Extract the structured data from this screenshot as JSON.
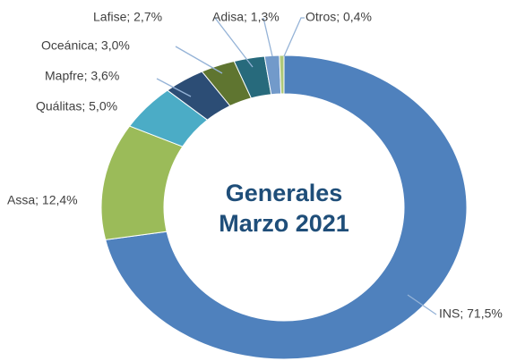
{
  "chart_data": {
    "type": "donut",
    "title": [
      "Generales",
      "Marzo 2021"
    ],
    "values": [
      71.5,
      12.4,
      5.0,
      3.6,
      3.0,
      2.7,
      1.3,
      0.4
    ],
    "value_labels": [
      "INS; 71,5%",
      "Assa; 12,4%",
      "Quálitas; 5,0%",
      "Mapfre; 3,6%",
      "Oceánica; 3,0%",
      "Lafise; 2,7%",
      "Adisa; 1,3%",
      "Otros; 0,4%"
    ],
    "colors": [
      "#4f81bd",
      "#9bbb59",
      "#4bacc6",
      "#2c4d75",
      "#5f7530",
      "#276a7c",
      "#729aca",
      "#afc97a"
    ]
  }
}
